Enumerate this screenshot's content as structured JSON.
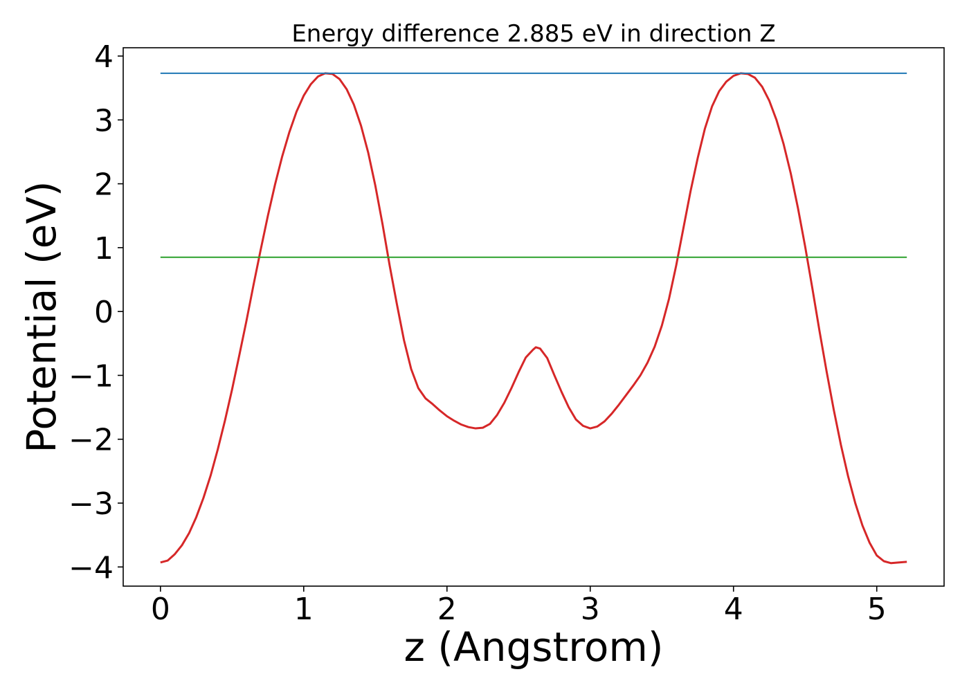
{
  "chart_data": {
    "type": "line",
    "title": "Energy difference 2.885 eV in direction Z",
    "xlabel": "z (Angstrom)",
    "ylabel": "Potential (eV)",
    "xlim": [
      -0.26,
      5.47
    ],
    "ylim": [
      -4.3,
      4.13
    ],
    "xticks": [
      0,
      1,
      2,
      3,
      4,
      5
    ],
    "yticks": [
      -4,
      -3,
      -2,
      -1,
      0,
      1,
      2,
      3,
      4
    ],
    "xtick_labels": [
      "0",
      "1",
      "2",
      "3",
      "4",
      "5"
    ],
    "ytick_labels": [
      "−4",
      "−3",
      "−2",
      "−1",
      "0",
      "1",
      "2",
      "3",
      "4"
    ],
    "grid": false,
    "legend": "none",
    "series": [
      {
        "color": "#d62728",
        "x": [
          0,
          0.05,
          0.1,
          0.15,
          0.2,
          0.25,
          0.3,
          0.35,
          0.4,
          0.45,
          0.5,
          0.55,
          0.6,
          0.65,
          0.7,
          0.75,
          0.8,
          0.85,
          0.9,
          0.95,
          1.0,
          1.05,
          1.1,
          1.15,
          1.2,
          1.25,
          1.3,
          1.35,
          1.4,
          1.45,
          1.5,
          1.55,
          1.6,
          1.65,
          1.7,
          1.75,
          1.8,
          1.85,
          1.9,
          1.95,
          2.0,
          2.05,
          2.1,
          2.15,
          2.2,
          2.25,
          2.3,
          2.35,
          2.4,
          2.45,
          2.5,
          2.55,
          2.6,
          2.62,
          2.65,
          2.7,
          2.75,
          2.8,
          2.85,
          2.9,
          2.95,
          3.0,
          3.05,
          3.1,
          3.15,
          3.2,
          3.25,
          3.3,
          3.35,
          3.4,
          3.45,
          3.5,
          3.55,
          3.6,
          3.65,
          3.7,
          3.75,
          3.8,
          3.85,
          3.9,
          3.95,
          4.0,
          4.05,
          4.1,
          4.15,
          4.2,
          4.25,
          4.3,
          4.35,
          4.4,
          4.45,
          4.5,
          4.55,
          4.6,
          4.65,
          4.7,
          4.75,
          4.8,
          4.85,
          4.9,
          4.95,
          5.0,
          5.05,
          5.1,
          5.15,
          5.21
        ],
        "y": [
          -3.93,
          -3.9,
          -3.8,
          -3.66,
          -3.47,
          -3.22,
          -2.92,
          -2.57,
          -2.16,
          -1.71,
          -1.22,
          -0.69,
          -0.15,
          0.42,
          0.97,
          1.5,
          1.99,
          2.43,
          2.81,
          3.13,
          3.38,
          3.56,
          3.68,
          3.73,
          3.72,
          3.64,
          3.48,
          3.24,
          2.91,
          2.49,
          1.97,
          1.37,
          0.72,
          0.12,
          -0.45,
          -0.9,
          -1.2,
          -1.36,
          -1.45,
          -1.55,
          -1.64,
          -1.71,
          -1.77,
          -1.81,
          -1.83,
          -1.82,
          -1.76,
          -1.62,
          -1.43,
          -1.2,
          -0.95,
          -0.72,
          -0.6,
          -0.56,
          -0.58,
          -0.73,
          -1.0,
          -1.26,
          -1.5,
          -1.69,
          -1.79,
          -1.83,
          -1.8,
          -1.72,
          -1.6,
          -1.46,
          -1.31,
          -1.16,
          -1.0,
          -0.8,
          -0.55,
          -0.22,
          0.2,
          0.72,
          1.3,
          1.88,
          2.4,
          2.86,
          3.21,
          3.45,
          3.6,
          3.69,
          3.73,
          3.72,
          3.66,
          3.52,
          3.3,
          3.0,
          2.62,
          2.16,
          1.62,
          1.02,
          0.37,
          -0.3,
          -0.94,
          -1.54,
          -2.09,
          -2.58,
          -3.0,
          -3.35,
          -3.62,
          -3.82,
          -3.91,
          -3.94,
          -3.93,
          -3.92
        ]
      },
      {
        "color": "#1f77b4",
        "x": [
          0,
          5.21
        ],
        "y": [
          3.73,
          3.73
        ]
      },
      {
        "color": "#2ca02c",
        "x": [
          0,
          5.21
        ],
        "y": [
          0.85,
          0.85
        ]
      }
    ]
  }
}
